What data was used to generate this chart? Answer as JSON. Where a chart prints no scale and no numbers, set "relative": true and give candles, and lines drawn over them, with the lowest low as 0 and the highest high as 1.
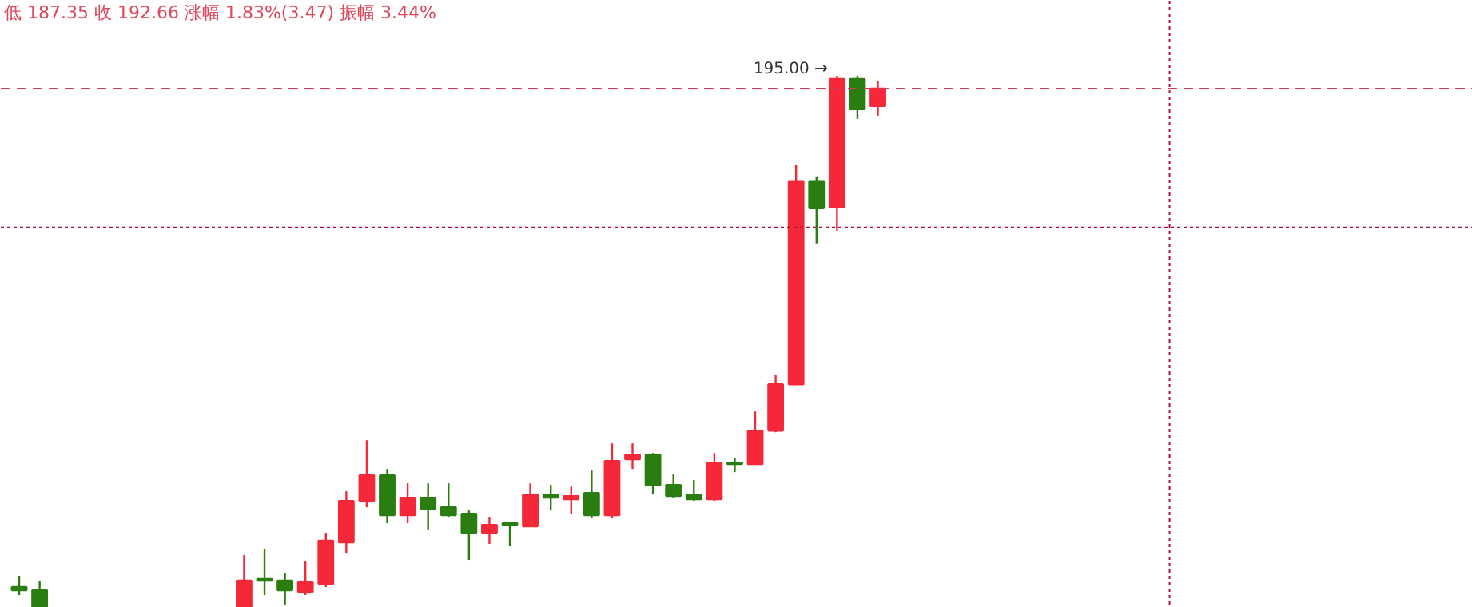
{
  "chart_data": {
    "type": "candlestick",
    "title": "低 187.35 收 192.66 涨幅 1.83%(3.47) 振幅 3.44%",
    "relative": true,
    "categories": [
      null,
      null,
      null,
      null,
      null,
      null,
      null,
      null,
      null,
      null,
      null,
      null,
      null,
      null,
      null,
      null,
      null,
      null,
      null,
      null,
      null,
      null,
      null,
      null,
      null,
      null,
      null,
      null,
      null,
      null,
      null,
      null,
      null,
      null,
      null,
      null,
      null,
      null,
      null,
      null,
      null,
      null,
      null,
      null,
      null,
      null,
      null,
      null,
      null,
      null,
      null,
      null,
      null,
      null,
      null,
      null,
      null,
      null,
      null,
      null,
      null,
      null,
      null,
      null,
      null,
      null,
      null,
      null,
      null,
      null,
      null,
      null
    ],
    "ohlc": [
      [
        0.039,
        0.06,
        0.024,
        0.033
      ],
      [
        0.033,
        0.051,
        0,
        0
      ],
      null,
      null,
      null,
      null,
      null,
      null,
      null,
      null,
      null,
      [
        0,
        0.099,
        0,
        0.051
      ],
      [
        0.054,
        0.111,
        0.024,
        0.051
      ],
      [
        0.051,
        0.066,
        0.006,
        0.033
      ],
      [
        0.03,
        0.087,
        0.024,
        0.048
      ],
      [
        0.045,
        0.141,
        0.039,
        0.126
      ],
      [
        0.123,
        0.219,
        0.102,
        0.201
      ],
      [
        0.201,
        0.315,
        0.189,
        0.249
      ],
      [
        0.249,
        0.261,
        0.159,
        0.174
      ],
      [
        0.174,
        0.234,
        0.159,
        0.207
      ],
      [
        0.207,
        0.234,
        0.147,
        0.186
      ],
      [
        0.189,
        0.234,
        0.171,
        0.174
      ],
      [
        0.177,
        0.183,
        0.09,
        0.141
      ],
      [
        0.141,
        0.171,
        0.12,
        0.156
      ],
      [
        0.159,
        0.159,
        0.117,
        0.156
      ],
      [
        0.153,
        0.234,
        0.153,
        0.213
      ],
      [
        0.213,
        0.231,
        0.183,
        0.207
      ],
      [
        0.204,
        0.228,
        0.177,
        0.21
      ],
      [
        0.216,
        0.258,
        0.168,
        0.174
      ],
      [
        0.174,
        0.309,
        0.168,
        0.276
      ],
      [
        0.279,
        0.309,
        0.261,
        0.288
      ],
      [
        0.288,
        0.291,
        0.213,
        0.231
      ],
      [
        0.231,
        0.252,
        0.207,
        0.21
      ],
      [
        0.213,
        0.24,
        0.201,
        0.204
      ],
      [
        0.204,
        0.291,
        0.201,
        0.273
      ],
      [
        0.273,
        0.282,
        0.255,
        0.27
      ],
      [
        0.27,
        0.369,
        0.27,
        0.333
      ],
      [
        0.333,
        0.438,
        0.33,
        0.42
      ],
      [
        0.42,
        0.832,
        0.42,
        0.802
      ],
      [
        0.802,
        0.811,
        0.685,
        0.751
      ],
      [
        0.754,
        1,
        0.709,
        0.994
      ],
      [
        0.994,
        1,
        0.919,
        0.937
      ],
      [
        0.943,
        0.991,
        0.925,
        0.976
      ],
      null,
      null,
      null,
      null,
      null,
      null,
      null,
      null,
      null,
      null,
      null,
      null,
      null,
      null,
      null,
      null,
      null,
      null,
      null,
      null,
      null,
      null,
      null,
      null,
      null,
      null,
      null,
      null,
      null
    ],
    "colors": [
      "#2a7d10",
      "#2a7d10",
      null,
      null,
      null,
      null,
      null,
      null,
      null,
      null,
      null,
      "#f5283a",
      "#2a7d10",
      "#2a7d10",
      "#f5283a",
      "#f5283a",
      "#f5283a",
      "#f5283a",
      "#2a7d10",
      "#f5283a",
      "#2a7d10",
      "#2a7d10",
      "#2a7d10",
      "#f5283a",
      "#2a7d10",
      "#f5283a",
      "#2a7d10",
      "#f5283a",
      "#2a7d10",
      "#f5283a",
      "#f5283a",
      "#2a7d10",
      "#2a7d10",
      "#2a7d10",
      "#f5283a",
      "#2a7d10",
      "#f5283a",
      "#f5283a",
      "#f5283a",
      "#2a7d10",
      "#f5283a",
      "#2a7d10",
      "#f5283a",
      null,
      null,
      null,
      null,
      null,
      null,
      null,
      null,
      null,
      null,
      null,
      null,
      null,
      null,
      null,
      null,
      null,
      null,
      null,
      null,
      null,
      null,
      null,
      null,
      null,
      null,
      null,
      null,
      null
    ],
    "annotations": [
      "195.00 →"
    ],
    "ref_lines": [
      {
        "axis": "y",
        "value": 0.976,
        "line_style": "dashed",
        "color": "#d23a55"
      },
      {
        "axis": "y",
        "value": 0.715,
        "line_style": "dotted",
        "color": "#b0103a"
      }
    ],
    "grid": false
  }
}
